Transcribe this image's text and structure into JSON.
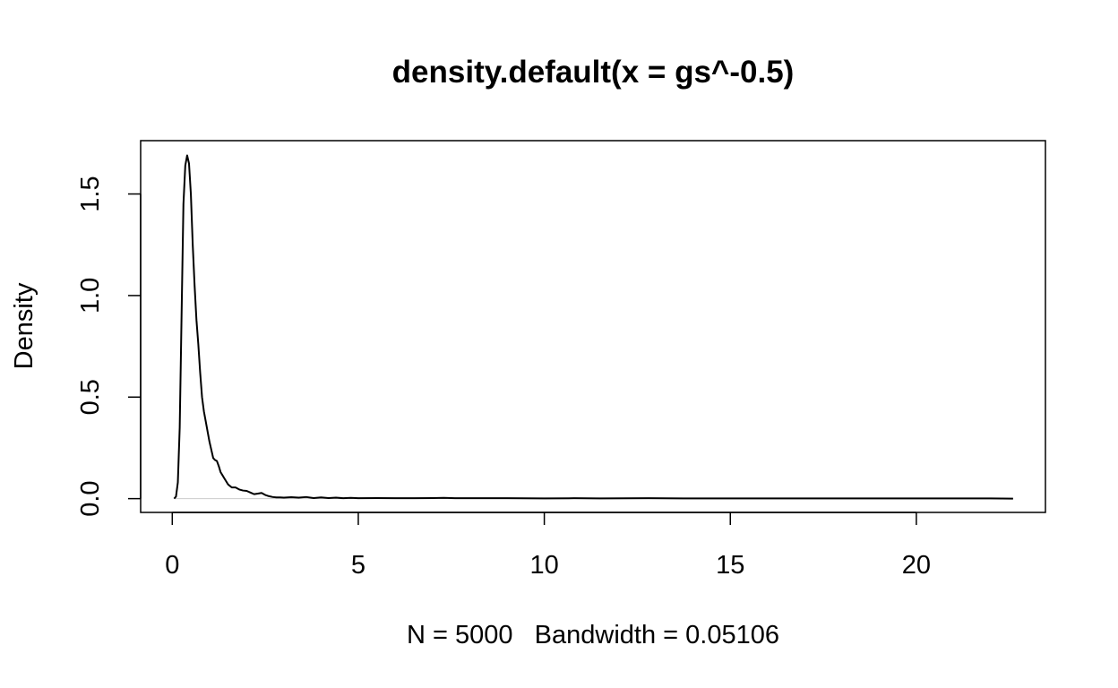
{
  "chart_data": {
    "type": "line",
    "title": "density.default(x = gs^-0.5)",
    "xlabel": "N = 5000   Bandwidth = 0.05106",
    "ylabel": "Density",
    "xlim": [
      -0.85,
      23.47
    ],
    "ylim": [
      -0.0678,
      1.7626
    ],
    "grid": false,
    "legend": "none",
    "x_ticks": [
      0,
      5,
      10,
      15,
      20
    ],
    "x_tick_labels": [
      "0",
      "5",
      "10",
      "15",
      "20"
    ],
    "y_ticks": [
      0.0,
      0.5,
      1.0,
      1.5
    ],
    "y_tick_labels": [
      "0.0",
      "0.5",
      "1.0",
      "1.5"
    ],
    "baseline_y": 0,
    "series": [
      {
        "color": "#000000",
        "x": [
          0.05,
          0.1,
          0.15,
          0.2,
          0.25,
          0.3,
          0.35,
          0.4,
          0.45,
          0.5,
          0.55,
          0.6,
          0.65,
          0.7,
          0.75,
          0.8,
          0.85,
          0.9,
          0.95,
          1.0,
          1.05,
          1.1,
          1.15,
          1.2,
          1.25,
          1.3,
          1.35,
          1.4,
          1.45,
          1.5,
          1.6,
          1.7,
          1.8,
          1.9,
          2.0,
          2.1,
          2.2,
          2.3,
          2.4,
          2.5,
          2.6,
          2.7,
          2.8,
          2.9,
          3.0,
          3.2,
          3.4,
          3.6,
          3.8,
          4.0,
          4.2,
          4.4,
          4.6,
          4.8,
          5.0,
          5.5,
          6.0,
          6.5,
          7.0,
          7.3,
          7.6,
          8.0,
          9.0,
          10.0,
          10.8,
          11.5,
          12.8,
          14.0,
          16.0,
          18.0,
          20.0,
          22.0,
          22.6
        ],
        "y": [
          0.0,
          0.01,
          0.08,
          0.35,
          0.9,
          1.45,
          1.64,
          1.69,
          1.65,
          1.5,
          1.25,
          1.05,
          0.88,
          0.76,
          0.62,
          0.5,
          0.43,
          0.38,
          0.33,
          0.28,
          0.24,
          0.2,
          0.19,
          0.185,
          0.16,
          0.13,
          0.115,
          0.1,
          0.085,
          0.07,
          0.055,
          0.055,
          0.045,
          0.04,
          0.038,
          0.03,
          0.022,
          0.025,
          0.028,
          0.018,
          0.012,
          0.008,
          0.006,
          0.006,
          0.005,
          0.007,
          0.005,
          0.008,
          0.003,
          0.006,
          0.003,
          0.005,
          0.002,
          0.004,
          0.002,
          0.003,
          0.002,
          0.002,
          0.003,
          0.004,
          0.002,
          0.002,
          0.002,
          0.001,
          0.002,
          0.001,
          0.002,
          0.001,
          0.001,
          0.001,
          0.001,
          0.001,
          0.0
        ]
      }
    ]
  }
}
